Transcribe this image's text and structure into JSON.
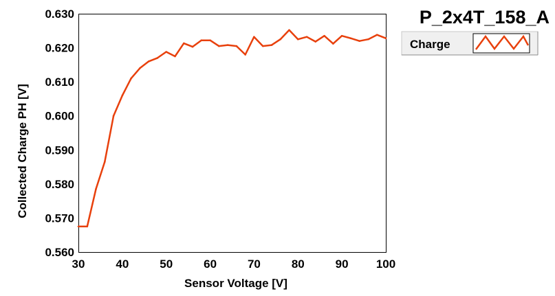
{
  "chart_data": {
    "type": "line",
    "title": "P_2x4T_158_A",
    "xlabel": "Sensor Voltage [V]",
    "ylabel": "Collected Charge PH [V]",
    "xlim": [
      30,
      100
    ],
    "ylim": [
      0.56,
      0.63
    ],
    "xticks": [
      30,
      40,
      50,
      60,
      70,
      80,
      90,
      100
    ],
    "xtick_labels": [
      "30",
      "40",
      "50",
      "60",
      "70",
      "80",
      "90",
      "100"
    ],
    "yticks": [
      0.56,
      0.57,
      0.58,
      0.59,
      0.6,
      0.61,
      0.62,
      0.63
    ],
    "ytick_labels": [
      "0.560",
      "0.570",
      "0.580",
      "0.590",
      "0.600",
      "0.610",
      "0.620",
      "0.630"
    ],
    "grid": true,
    "legend_position": "top-right, outside plot",
    "series": [
      {
        "name": "Charge",
        "color": "#e8400c",
        "x": [
          30,
          32,
          34,
          36,
          38,
          40,
          42,
          44,
          46,
          48,
          50,
          52,
          54,
          56,
          58,
          60,
          62,
          64,
          66,
          68,
          70,
          72,
          74,
          76,
          78,
          80,
          82,
          84,
          86,
          88,
          90,
          92,
          94,
          96,
          98,
          100
        ],
        "y": [
          0.5675,
          0.5675,
          0.5785,
          0.5865,
          0.6,
          0.606,
          0.611,
          0.614,
          0.616,
          0.617,
          0.6188,
          0.6175,
          0.6213,
          0.6203,
          0.6222,
          0.6222,
          0.6205,
          0.6208,
          0.6205,
          0.618,
          0.6232,
          0.6205,
          0.6208,
          0.6225,
          0.6252,
          0.6225,
          0.6232,
          0.6218,
          0.6235,
          0.6212,
          0.6235,
          0.6228,
          0.622,
          0.6225,
          0.6238,
          0.6228
        ]
      }
    ]
  },
  "colors": {
    "plot_background": "#ffffff",
    "grid": "#000000",
    "series": "#e8400c",
    "legend_background": "#f0f0f0"
  }
}
